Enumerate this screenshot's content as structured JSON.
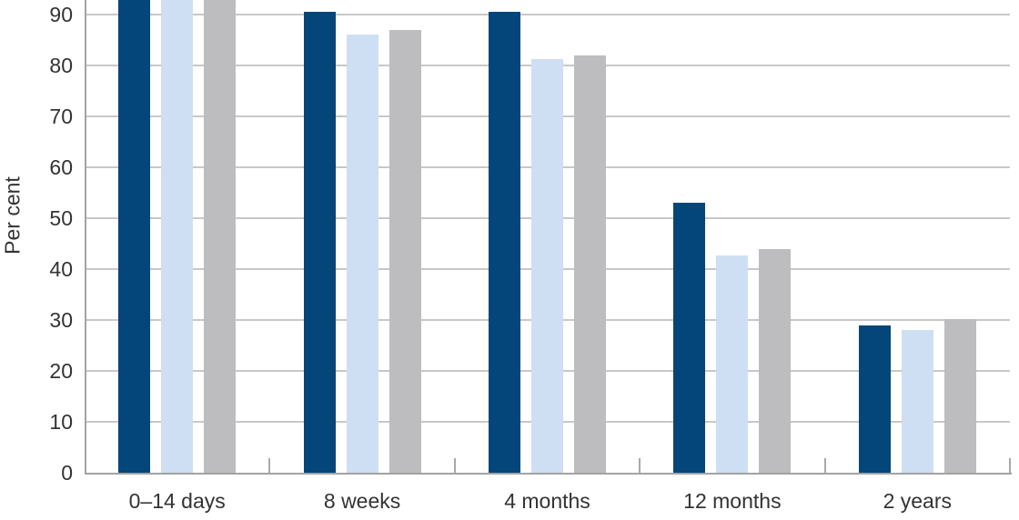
{
  "chart_data": {
    "type": "bar",
    "title": "",
    "xlabel": "",
    "ylabel": "Per cent",
    "categories": [
      "0–14 days",
      "8 weeks",
      "4 months",
      "12 months",
      "2 years"
    ],
    "series": [
      {
        "name": "series-1-dark-blue",
        "color": "#044679",
        "values": [
          97,
          90.5,
          90.5,
          53,
          29
        ]
      },
      {
        "name": "series-2-light-blue",
        "color": "#cedff3",
        "values": [
          96,
          86,
          81.3,
          42.7,
          28
        ]
      },
      {
        "name": "series-3-grey",
        "color": "#bdbdbf",
        "values": [
          96.5,
          87,
          82,
          44,
          30.2
        ]
      }
    ],
    "y_ticks": [
      0,
      10,
      20,
      30,
      40,
      50,
      60,
      70,
      80,
      90
    ],
    "ylim_visible": [
      0,
      93
    ],
    "grid": true,
    "legend_position": "none-visible",
    "note": "The three bars of the first group (0–14 days) extend past the cropped top edge of the image; exact values above 93 are not readable. No chart title or legend is visible in the crop.",
    "colors": {
      "gridline": "#c8c8c8",
      "axis": "#a3a3a3",
      "text": "#333333",
      "background": "#ffffff"
    }
  }
}
